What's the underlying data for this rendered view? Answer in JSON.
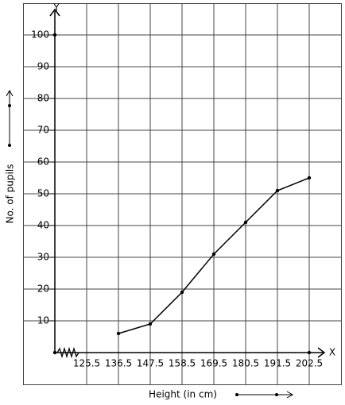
{
  "chart_data": {
    "type": "line",
    "x_label": "Height (in cm)",
    "y_label": "No. of pupils",
    "x_axis_name": "X",
    "y_axis_name": "Y",
    "x": [
      136.5,
      147.5,
      158.5,
      169.5,
      180.5,
      191.5,
      202.5
    ],
    "series": [
      {
        "color": "#000000",
        "values": [
          6,
          9,
          19,
          31,
          41,
          51,
          55
        ]
      }
    ],
    "xlim": [
      103.5,
      213.5
    ],
    "xticks": [
      125.5,
      136.5,
      147.5,
      158.5,
      169.5,
      180.5,
      191.5,
      202.5
    ],
    "ylim": [
      -10,
      110
    ],
    "yticks": [
      10,
      20,
      30,
      40,
      50,
      60,
      70,
      80,
      90,
      100
    ],
    "grid": true
  }
}
